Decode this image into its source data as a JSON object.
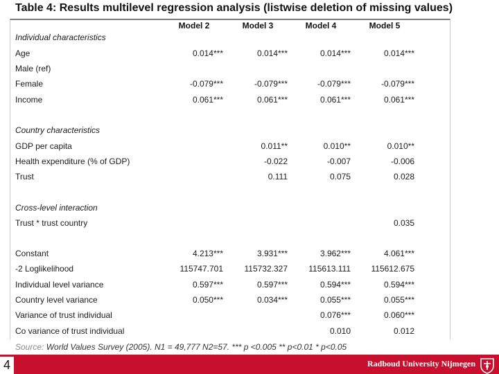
{
  "title": "Table 4: Results multilevel regression analysis (listwise deletion of missing values)",
  "columns": [
    "Model 2",
    "Model 3",
    "Model 4",
    "Model 5"
  ],
  "rows": [
    {
      "label": "Individual characteristics",
      "section": true,
      "values": [
        "",
        "",
        "",
        ""
      ]
    },
    {
      "label": "Age",
      "values": [
        "0.014***",
        "0.014***",
        "0.014***",
        "0.014***"
      ]
    },
    {
      "label": "Male (ref)",
      "values": [
        "",
        "",
        "",
        ""
      ]
    },
    {
      "label": "Female",
      "values": [
        "-0.079***",
        "-0.079***",
        "-0.079***",
        "-0.079***"
      ]
    },
    {
      "label": "Income",
      "values": [
        "0.061***",
        "0.061***",
        "0.061***",
        "0.061***"
      ]
    },
    {
      "label": "Country characteristics",
      "section": true,
      "values": [
        "",
        "",
        "",
        ""
      ]
    },
    {
      "label": "GDP per capita",
      "values": [
        "",
        "0.011**",
        "0.010**",
        "0.010**"
      ]
    },
    {
      "label": "Health expenditure (% of GDP)",
      "values": [
        "",
        "-0.022",
        "-0.007",
        "-0.006"
      ]
    },
    {
      "label": "Trust",
      "values": [
        "",
        "0.111",
        "0.075",
        "0.028"
      ]
    },
    {
      "label": "Cross-level interaction",
      "section": true,
      "values": [
        "",
        "",
        "",
        ""
      ]
    },
    {
      "label": "Trust * trust country",
      "values": [
        "",
        "",
        "",
        "0.035"
      ]
    },
    {
      "label": "Constant",
      "values": [
        "4.213***",
        "3.931***",
        "3.962***",
        "4.061***"
      ]
    },
    {
      "label": "-2 Loglikelihood",
      "values": [
        "115747.701",
        "115732.327",
        "115613.111",
        "115612.675"
      ]
    },
    {
      "label": "Individual level variance",
      "values": [
        "0.597***",
        "0.597***",
        "0.594***",
        "0.594***"
      ]
    },
    {
      "label": "Country level variance",
      "values": [
        "0.050***",
        "0.034***",
        "0.055***",
        "0.055***"
      ]
    },
    {
      "label": "Variance of trust individual",
      "values": [
        "",
        "",
        "0.076***",
        "0.060***"
      ]
    },
    {
      "label": "Co variance of trust individual",
      "values": [
        "",
        "",
        "0.010",
        "0.012"
      ]
    }
  ],
  "source": {
    "lead": "Source:",
    "text": " World Values Survey (2005). N1 = 49,777 N2=57. *** p <0.005 ** p<0.01 * p<0.05"
  },
  "footer": {
    "page_number": "4",
    "university": "Radboud University Nijmegen"
  },
  "colors": {
    "footer_bar": "#c8102e"
  }
}
